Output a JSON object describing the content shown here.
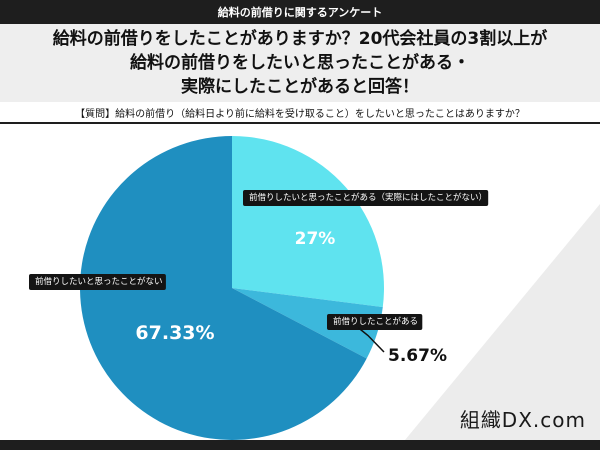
{
  "header": {
    "topbar": "給料の前借りに関するアンケート",
    "headline_lines": [
      "給料の前借りをしたことがありますか？20代会社員の3割以上が",
      "給料の前借りをしたいと思ったことがある・",
      "実際にしたことがあると回答！"
    ],
    "question": "【質問】給料の前借り（給料日より前に給料を受け取ること）をしたいと思ったことはありますか？"
  },
  "logo": {
    "text": "組織DX.com"
  },
  "colors": {
    "slice_large": "#1f8fc0",
    "slice_27": "#5fe3ef",
    "slice_small": "#3cb8dc",
    "label_box": "#141414",
    "label_text": "#ffffff",
    "pct_inside": "#ffffff",
    "pct_outside": "#111111",
    "accent_triangle": "#ececec"
  },
  "chart_data": {
    "type": "pie",
    "title": "",
    "slices": [
      {
        "label": "前借りしたいと思ったことがある（実際にはしたことがない）",
        "value": 27,
        "value_label": "27%"
      },
      {
        "label": "前借りしたことがある",
        "value": 5.67,
        "value_label": "5.67%"
      },
      {
        "label": "前借りしたいと思ったことがない",
        "value": 67.33,
        "value_label": "67.33%"
      }
    ],
    "start": "12 o'clock",
    "direction": "clockwise",
    "legend": "labels on slices"
  }
}
